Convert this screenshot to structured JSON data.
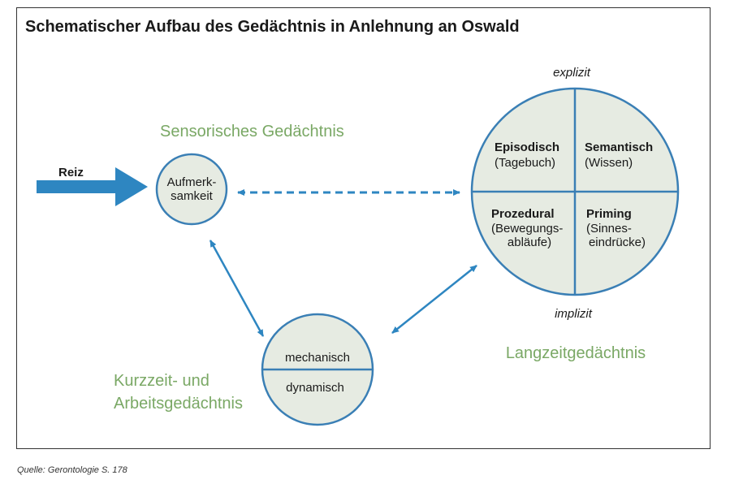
{
  "title": "Schematischer Aufbau des Gedächtnis in Anlehnung an Oswald",
  "source": "Quelle: Gerontologie S. 178",
  "colors": {
    "stroke": "#3a7fb5",
    "fill": "#e6ebe2",
    "green_label": "#7aa865",
    "arrow": "#2e86c1"
  },
  "input": {
    "label": "Reiz"
  },
  "sensory": {
    "label": "Sensorisches Gedächtnis",
    "content_line1": "Aufmerk-",
    "content_line2": "samkeit"
  },
  "short_term": {
    "label_line1": "Kurzzeit- und",
    "label_line2": "Arbeitsgedächtnis",
    "top": "mechanisch",
    "bottom": "dynamisch"
  },
  "long_term": {
    "label": "Langzeitgedächtnis",
    "axis_top": "explizit",
    "axis_bottom": "implizit",
    "quadrants": {
      "top_left": {
        "title": "Episodisch",
        "sub1": "(Tagebuch)",
        "sub2": ""
      },
      "top_right": {
        "title": "Semantisch",
        "sub1": "(Wissen)",
        "sub2": ""
      },
      "bottom_left": {
        "title": "Prozedural",
        "sub1": "(Bewegungs-",
        "sub2": "abläufe)"
      },
      "bottom_right": {
        "title": "Priming",
        "sub1": "(Sinnes-",
        "sub2": "eindrücke)"
      }
    }
  }
}
